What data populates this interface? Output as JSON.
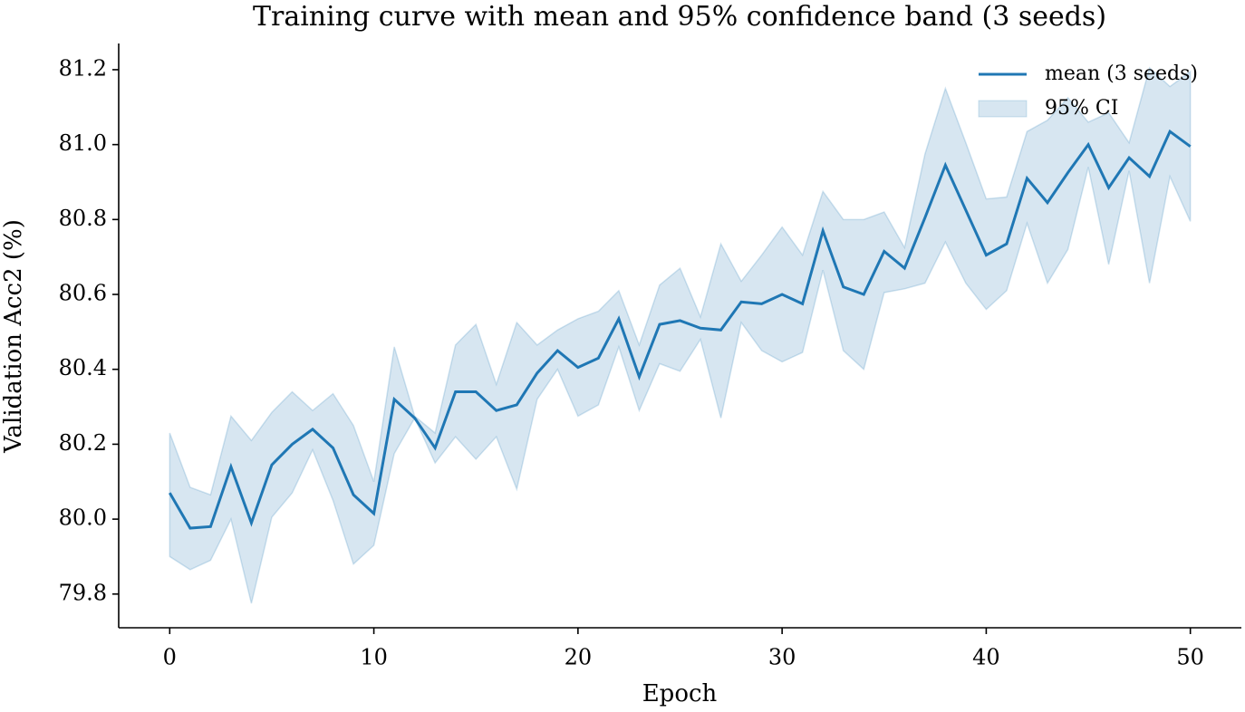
{
  "chart_data": {
    "type": "line",
    "title": "Training curve with mean and 95% confidence band (3 seeds)",
    "xlabel": "Epoch",
    "ylabel": "Validation Acc2 (%)",
    "x": [
      0,
      1,
      2,
      3,
      4,
      5,
      6,
      7,
      8,
      9,
      10,
      11,
      12,
      13,
      14,
      15,
      16,
      17,
      18,
      19,
      20,
      21,
      22,
      23,
      24,
      25,
      26,
      27,
      28,
      29,
      30,
      31,
      32,
      33,
      34,
      35,
      36,
      37,
      38,
      39,
      40,
      41,
      42,
      43,
      44,
      45,
      46,
      47,
      48,
      49,
      50
    ],
    "series": [
      {
        "name": "mean (3 seeds)",
        "color": "#1f77b4",
        "values": [
          80.07,
          79.976,
          79.98,
          80.14,
          79.99,
          80.145,
          80.2,
          80.24,
          80.19,
          80.065,
          80.015,
          80.32,
          80.27,
          80.19,
          80.34,
          80.34,
          80.29,
          80.305,
          80.39,
          80.45,
          80.405,
          80.43,
          80.535,
          80.38,
          80.52,
          80.53,
          80.51,
          80.505,
          80.58,
          80.575,
          80.6,
          80.575,
          80.77,
          80.62,
          80.6,
          80.715,
          80.67,
          80.805,
          80.945,
          80.825,
          80.705,
          80.735,
          80.91,
          80.845,
          80.925,
          81.0,
          80.885,
          80.965,
          80.915,
          81.035,
          80.995
        ]
      }
    ],
    "band": {
      "name": "95% CI",
      "color": "#1f77b4",
      "lower": [
        79.9,
        79.865,
        79.89,
        80.0,
        79.775,
        80.005,
        80.07,
        80.185,
        80.05,
        79.88,
        79.93,
        80.175,
        80.27,
        80.15,
        80.22,
        80.16,
        80.22,
        80.08,
        80.32,
        80.4,
        80.275,
        80.305,
        80.46,
        80.29,
        80.415,
        80.395,
        80.48,
        80.27,
        80.525,
        80.45,
        80.42,
        80.445,
        80.665,
        80.45,
        80.4,
        80.605,
        80.615,
        80.63,
        80.74,
        80.63,
        80.56,
        80.61,
        80.79,
        80.63,
        80.72,
        80.94,
        80.68,
        80.93,
        80.63,
        80.915,
        80.795
      ],
      "upper": [
        80.23,
        80.085,
        80.065,
        80.275,
        80.21,
        80.285,
        80.34,
        80.29,
        80.335,
        80.25,
        80.1,
        80.46,
        80.275,
        80.23,
        80.465,
        80.52,
        80.36,
        80.525,
        80.465,
        80.505,
        80.535,
        80.555,
        80.61,
        80.465,
        80.625,
        80.67,
        80.54,
        80.735,
        80.635,
        80.705,
        80.78,
        80.705,
        80.875,
        80.8,
        80.8,
        80.82,
        80.725,
        80.975,
        81.15,
        81.005,
        80.855,
        80.86,
        81.035,
        81.065,
        81.125,
        81.06,
        81.085,
        81.005,
        81.205,
        81.155,
        81.195
      ]
    },
    "xlim": [
      -2.5,
      52.5
    ],
    "ylim": [
      79.71,
      81.27
    ],
    "xticks": [
      0,
      10,
      20,
      30,
      40,
      50
    ],
    "yticks": [
      79.8,
      {
        "value": 80,
        "label": "80.0"
      },
      80.2,
      80.4,
      80.6,
      80.8,
      {
        "value": 81,
        "label": "81.0"
      },
      81.2
    ],
    "legend": "upper right"
  }
}
